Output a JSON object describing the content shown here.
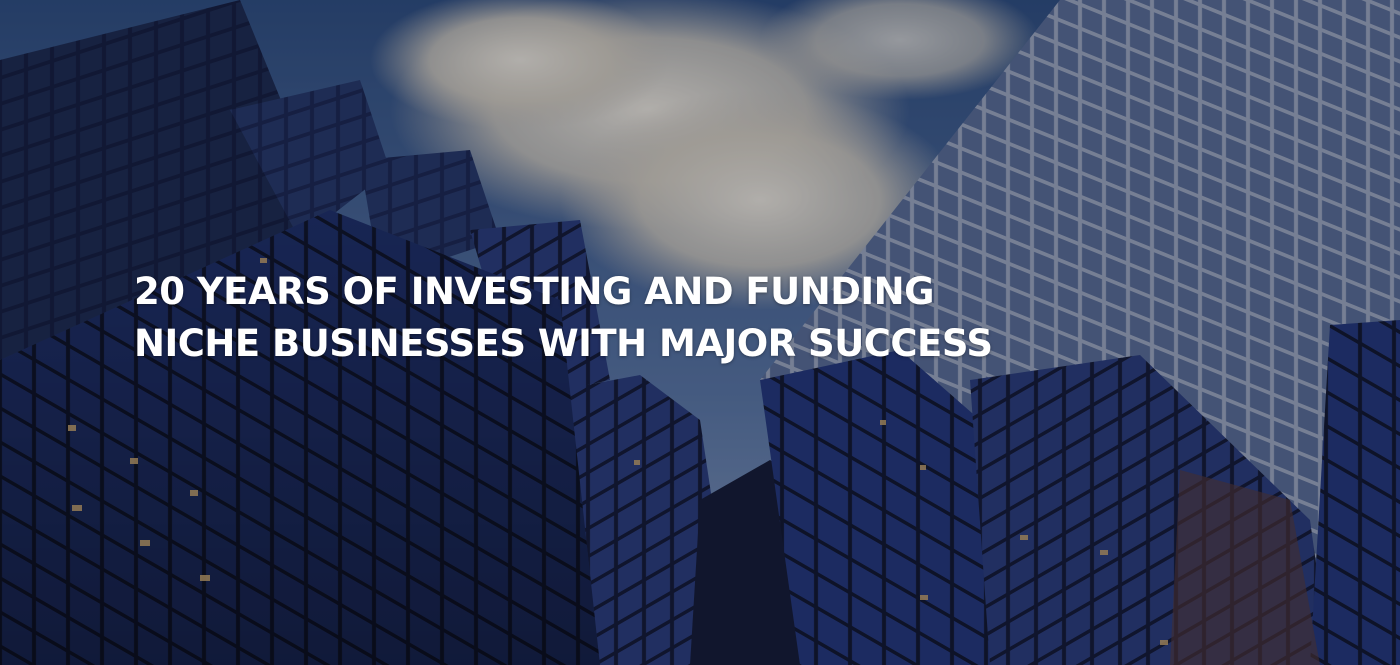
{
  "hero": {
    "heading_line_1": "20 YEARS OF INVESTING AND FUNDING",
    "heading_line_2": "NICHE BUSINESSES WITH MAJOR SUCCESS",
    "background_icon": "skyscrapers-from-below-image"
  },
  "colors": {
    "sky_top": "#2f4f80",
    "sky_bottom": "#7f95b8",
    "cloud": "#e8e2d4",
    "glass_dark": "#141a33",
    "glass_blue": "#23325f",
    "grid_line": "#b9c3d6",
    "heading_text": "#ffffff"
  }
}
